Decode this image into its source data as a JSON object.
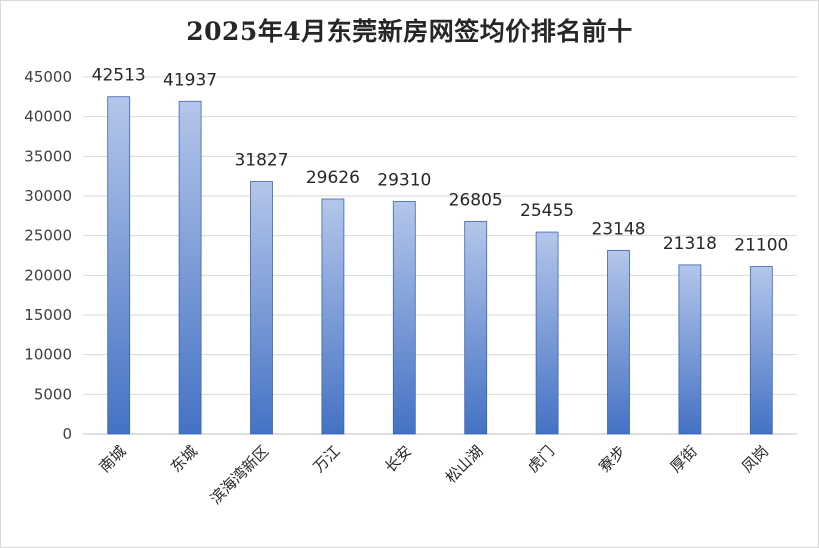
{
  "chart_data": {
    "type": "bar",
    "title": "2025年4月东莞新房网签均价排名前十",
    "categories": [
      "南城",
      "东城",
      "滨海湾新区",
      "万江",
      "长安",
      "松山湖",
      "虎门",
      "寮步",
      "厚街",
      "凤岗"
    ],
    "values": [
      42513,
      41937,
      31827,
      29626,
      29310,
      26805,
      25455,
      23148,
      21318,
      21100
    ],
    "data_labels": [
      "42513",
      "41937",
      "31827",
      "29626",
      "29310",
      "26805",
      "25455",
      "23148",
      "21318",
      "21100"
    ],
    "y_ticks": [
      "0",
      "5000",
      "10000",
      "15000",
      "20000",
      "25000",
      "30000",
      "35000",
      "40000",
      "45000"
    ],
    "ylim": [
      0,
      45000
    ],
    "xlabel": "",
    "ylabel": "",
    "grid": true,
    "legend": "none",
    "colors": {
      "bar_top": "#b4c6ea",
      "bar_bottom": "#4472c4",
      "bar_edge": "#3b63ad",
      "grid": "#d9d9d9"
    }
  }
}
